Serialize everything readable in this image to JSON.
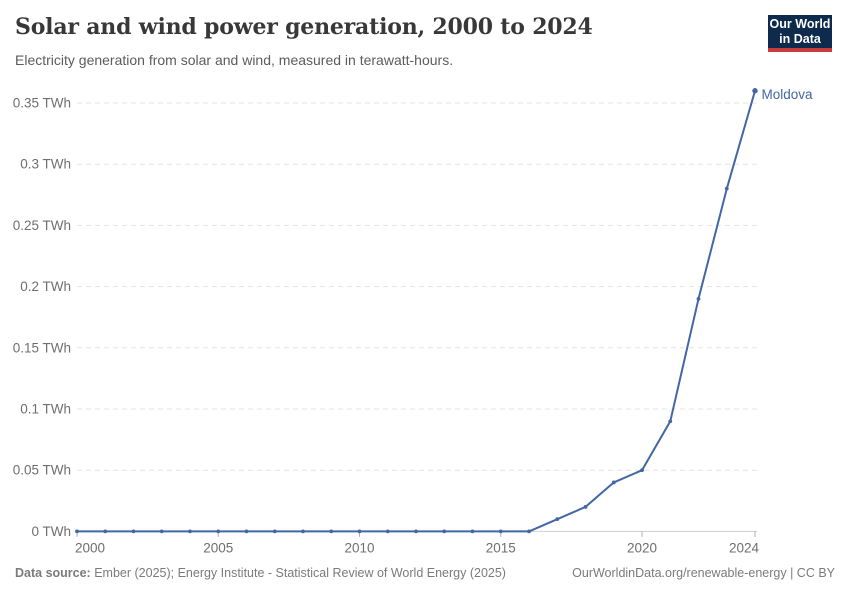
{
  "header": {
    "title": "Solar and wind power generation, 2000 to 2024",
    "subtitle": "Electricity generation from solar and wind, measured in terawatt-hours."
  },
  "logo": {
    "line1": "Our World",
    "line2": "in Data",
    "bg_color": "#0e2a4d",
    "bar_color": "#c93c3c"
  },
  "chart_data": {
    "type": "line",
    "title": "Solar and wind power generation, 2000 to 2024",
    "xlabel": "",
    "ylabel": "terawatt-hours",
    "x": [
      2000,
      2001,
      2002,
      2003,
      2004,
      2005,
      2006,
      2007,
      2008,
      2009,
      2010,
      2011,
      2012,
      2013,
      2014,
      2015,
      2016,
      2017,
      2018,
      2019,
      2020,
      2021,
      2022,
      2023,
      2024
    ],
    "series": [
      {
        "name": "Moldova",
        "color": "#4267a3",
        "values": [
          0,
          0,
          0,
          0,
          0,
          0,
          0,
          0,
          0,
          0,
          0,
          0,
          0,
          0,
          0,
          0,
          0,
          0.01,
          0.02,
          0.04,
          0.05,
          0.09,
          0.19,
          0.28,
          0.36
        ]
      }
    ],
    "x_ticks": [
      2000,
      2005,
      2010,
      2015,
      2020,
      2024
    ],
    "y_ticks": [
      0,
      0.05,
      0.1,
      0.15,
      0.2,
      0.25,
      0.3,
      0.35
    ],
    "y_tick_labels": [
      "0 TWh",
      "0.05 TWh",
      "0.1 TWh",
      "0.15 TWh",
      "0.2 TWh",
      "0.25 TWh",
      "0.3 TWh",
      "0.35 TWh"
    ],
    "xlim": [
      2000,
      2024
    ],
    "ylim": [
      0,
      0.35
    ],
    "grid": true,
    "grid_color": "#e3e3e3",
    "axis_color": "#cfcfcf",
    "tick_color": "#b0b0b0",
    "tick_label_color": "#6f6f6f",
    "legend_position": "end-of-line",
    "end_label": "Moldova"
  },
  "footer": {
    "source_label": "Data source:",
    "source_text": " Ember (2025); Energy Institute - Statistical Review of World Energy (2025)",
    "right_text": "OurWorldinData.org/renewable-energy | CC BY"
  }
}
